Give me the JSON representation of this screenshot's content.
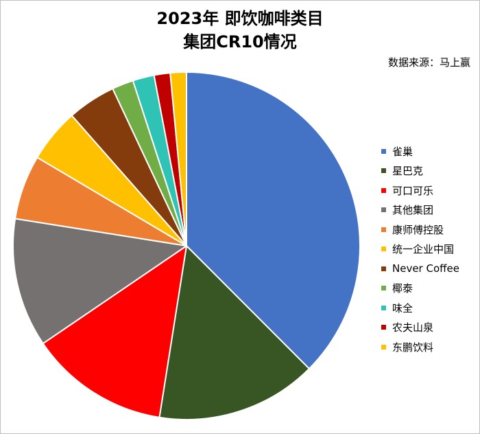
{
  "chart_data": {
    "type": "pie",
    "title_lines": [
      "2023年 即饮咖啡类目",
      "集团CR10情况"
    ],
    "source": "数据来源：马上赢",
    "legend_position": "right",
    "slices": [
      {
        "name": "雀巢",
        "value": 37.5,
        "color": "#4472C4"
      },
      {
        "name": "星巴克",
        "value": 15.0,
        "color": "#375623"
      },
      {
        "name": "可口可乐",
        "value": 13.0,
        "color": "#FF0000"
      },
      {
        "name": "其他集团",
        "value": 12.0,
        "color": "#767171"
      },
      {
        "name": "康师傅控股",
        "value": 6.0,
        "color": "#ED7D31"
      },
      {
        "name": "统一企业中国",
        "value": 5.0,
        "color": "#FFC000"
      },
      {
        "name": "Never Coffee",
        "value": 4.5,
        "color": "#843C0C"
      },
      {
        "name": "椰泰",
        "value": 2.0,
        "color": "#70AD47"
      },
      {
        "name": "味全",
        "value": 2.0,
        "color": "#2EC3B5"
      },
      {
        "name": "农夫山泉",
        "value": 1.5,
        "color": "#C00000"
      },
      {
        "name": "东鹏饮料",
        "value": 1.5,
        "color": "#FFC000"
      }
    ]
  }
}
